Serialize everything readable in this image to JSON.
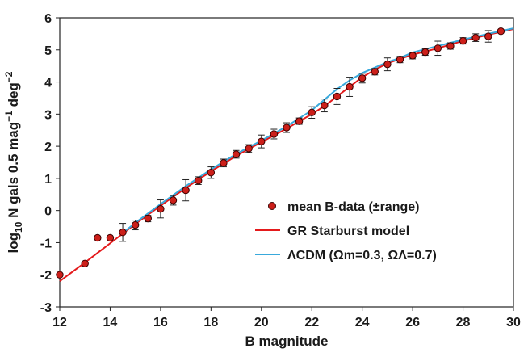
{
  "chart_data": {
    "type": "scatter",
    "xlabel": "B magnitude",
    "ylabel_parts": [
      "log",
      "10",
      " N gals 0.5 mag",
      "−1",
      " deg",
      "−2"
    ],
    "xlim": [
      12,
      30
    ],
    "ylim": [
      -3,
      6
    ],
    "xticks": [
      12,
      14,
      16,
      18,
      20,
      22,
      24,
      26,
      28,
      30
    ],
    "yticks": [
      -3,
      -2,
      -1,
      0,
      1,
      2,
      3,
      4,
      5,
      6
    ],
    "xtick_labels": [
      "12",
      "14",
      "16",
      "18",
      "20",
      "22",
      "24",
      "26",
      "28",
      "30"
    ],
    "ytick_labels": [
      "-3",
      "-2",
      "-1",
      "0",
      "1",
      "2",
      "3",
      "4",
      "5",
      "6"
    ],
    "grid": false,
    "legend_position": "center-right",
    "series": [
      {
        "name": "mean B-data (±range)",
        "kind": "points_with_errorbars",
        "color": "#cc1f1a",
        "edge_color": "#3a0000",
        "points": [
          {
            "x": 12.0,
            "y": -2.0,
            "err": 0
          },
          {
            "x": 13.0,
            "y": -1.65,
            "err": 0
          },
          {
            "x": 13.5,
            "y": -0.85,
            "err": 0
          },
          {
            "x": 14.0,
            "y": -0.85,
            "err": 0
          },
          {
            "x": 14.5,
            "y": -0.68,
            "err": 0.28
          },
          {
            "x": 15.0,
            "y": -0.45,
            "err": 0.15
          },
          {
            "x": 15.5,
            "y": -0.25,
            "err": 0.1
          },
          {
            "x": 16.0,
            "y": 0.05,
            "err": 0.28
          },
          {
            "x": 16.5,
            "y": 0.32,
            "err": 0.15
          },
          {
            "x": 17.0,
            "y": 0.63,
            "err": 0.33
          },
          {
            "x": 17.5,
            "y": 0.93,
            "err": 0.12
          },
          {
            "x": 18.0,
            "y": 1.18,
            "err": 0.18
          },
          {
            "x": 18.5,
            "y": 1.48,
            "err": 0.12
          },
          {
            "x": 19.0,
            "y": 1.75,
            "err": 0.12
          },
          {
            "x": 19.5,
            "y": 1.93,
            "err": 0.12
          },
          {
            "x": 20.0,
            "y": 2.15,
            "err": 0.2
          },
          {
            "x": 20.5,
            "y": 2.38,
            "err": 0.15
          },
          {
            "x": 21.0,
            "y": 2.58,
            "err": 0.15
          },
          {
            "x": 21.5,
            "y": 2.78,
            "err": 0.1
          },
          {
            "x": 22.0,
            "y": 3.05,
            "err": 0.18
          },
          {
            "x": 22.5,
            "y": 3.27,
            "err": 0.2
          },
          {
            "x": 23.0,
            "y": 3.55,
            "err": 0.25
          },
          {
            "x": 23.5,
            "y": 3.85,
            "err": 0.3
          },
          {
            "x": 24.0,
            "y": 4.12,
            "err": 0.15
          },
          {
            "x": 24.5,
            "y": 4.32,
            "err": 0.1
          },
          {
            "x": 25.0,
            "y": 4.55,
            "err": 0.2
          },
          {
            "x": 25.5,
            "y": 4.7,
            "err": 0.1
          },
          {
            "x": 26.0,
            "y": 4.82,
            "err": 0.1
          },
          {
            "x": 26.5,
            "y": 4.93,
            "err": 0.1
          },
          {
            "x": 27.0,
            "y": 5.05,
            "err": 0.22
          },
          {
            "x": 27.5,
            "y": 5.12,
            "err": 0.1
          },
          {
            "x": 28.0,
            "y": 5.28,
            "err": 0.1
          },
          {
            "x": 28.5,
            "y": 5.38,
            "err": 0.12
          },
          {
            "x": 29.0,
            "y": 5.42,
            "err": 0.18
          },
          {
            "x": 29.5,
            "y": 5.58,
            "err": 0.05
          }
        ]
      },
      {
        "name": "GR Starburst model",
        "kind": "line",
        "color": "#e41a1c",
        "x": [
          12,
          13,
          14,
          15,
          16,
          17,
          18,
          19,
          20,
          21,
          22,
          22.5,
          23,
          23.5,
          24,
          24.5,
          25,
          25.5,
          26,
          27,
          28,
          29,
          30
        ],
        "y": [
          -2.2,
          -1.62,
          -1.02,
          -0.42,
          0.15,
          0.7,
          1.22,
          1.7,
          2.13,
          2.55,
          3.0,
          3.25,
          3.55,
          3.85,
          4.15,
          4.38,
          4.58,
          4.72,
          4.85,
          5.05,
          5.28,
          5.47,
          5.65
        ]
      },
      {
        "name": "ΛCDM (Ωm=0.3, ΩΛ=0.7)",
        "kind": "line",
        "color": "#39a9dc",
        "x": [
          14.5,
          15,
          16,
          17,
          18,
          19,
          20,
          21,
          22,
          22.5,
          23,
          23.5,
          24,
          24.5,
          25,
          25.5,
          26,
          27,
          28,
          29,
          30
        ],
        "y": [
          -0.7,
          -0.38,
          0.2,
          0.76,
          1.28,
          1.76,
          2.18,
          2.62,
          3.12,
          3.45,
          3.78,
          4.05,
          4.28,
          4.45,
          4.62,
          4.75,
          4.92,
          5.12,
          5.32,
          5.5,
          5.67
        ]
      }
    ]
  }
}
